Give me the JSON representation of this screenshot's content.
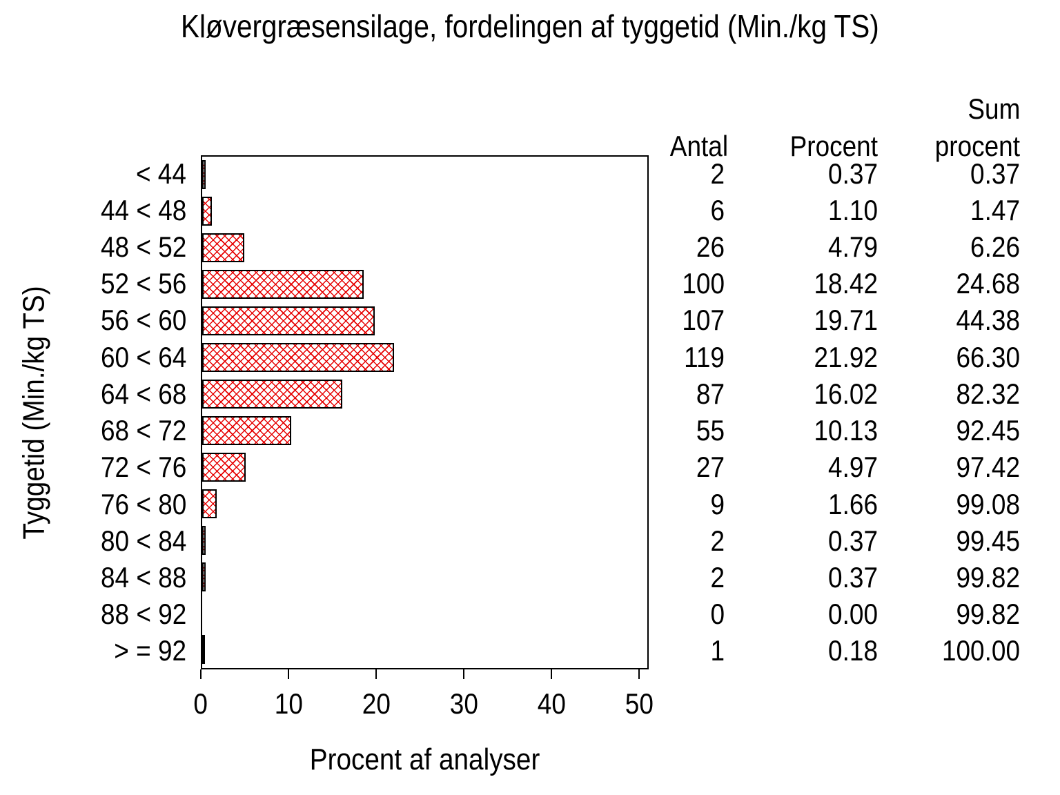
{
  "chart_data": {
    "type": "bar",
    "orientation": "horizontal",
    "title": "Kløvergræsensilage, fordelingen af tyggetid (Min./kg TS)",
    "xlabel": "Procent af analyser",
    "ylabel": "Tyggetid (Min./kg TS)",
    "xlim": [
      0,
      50
    ],
    "xticks": [
      "0",
      "10",
      "20",
      "30",
      "40",
      "50"
    ],
    "grid": "off",
    "legend": "none",
    "bar_style": {
      "fill": "crosshatch",
      "hatch_color": "#e60000",
      "border_color": "#000000",
      "background": "#ffffff"
    },
    "categories": [
      "< 44",
      "44 < 48",
      "48 < 52",
      "52 < 56",
      "56 < 60",
      "60 < 64",
      "64 < 68",
      "68 < 72",
      "72 < 76",
      "76 < 80",
      "80 < 84",
      "84 < 88",
      "88 < 92",
      "> = 92"
    ],
    "values": [
      0.37,
      1.1,
      4.79,
      18.42,
      19.71,
      21.92,
      16.02,
      10.13,
      4.97,
      1.66,
      0.37,
      0.37,
      0.0,
      0.18
    ],
    "table": {
      "headers": {
        "antal": "Antal",
        "procent": "Procent",
        "sum_top": "Sum",
        "sum_bottom": "procent"
      },
      "rows": [
        {
          "antal": "2",
          "procent": "0.37",
          "sum": "0.37"
        },
        {
          "antal": "6",
          "procent": "1.10",
          "sum": "1.47"
        },
        {
          "antal": "26",
          "procent": "4.79",
          "sum": "6.26"
        },
        {
          "antal": "100",
          "procent": "18.42",
          "sum": "24.68"
        },
        {
          "antal": "107",
          "procent": "19.71",
          "sum": "44.38"
        },
        {
          "antal": "119",
          "procent": "21.92",
          "sum": "66.30"
        },
        {
          "antal": "87",
          "procent": "16.02",
          "sum": "82.32"
        },
        {
          "antal": "55",
          "procent": "10.13",
          "sum": "92.45"
        },
        {
          "antal": "27",
          "procent": "4.97",
          "sum": "97.42"
        },
        {
          "antal": "9",
          "procent": "1.66",
          "sum": "99.08"
        },
        {
          "antal": "2",
          "procent": "0.37",
          "sum": "99.45"
        },
        {
          "antal": "2",
          "procent": "0.37",
          "sum": "99.82"
        },
        {
          "antal": "0",
          "procent": "0.00",
          "sum": "99.82"
        },
        {
          "antal": "1",
          "procent": "0.18",
          "sum": "100.00"
        }
      ]
    }
  }
}
